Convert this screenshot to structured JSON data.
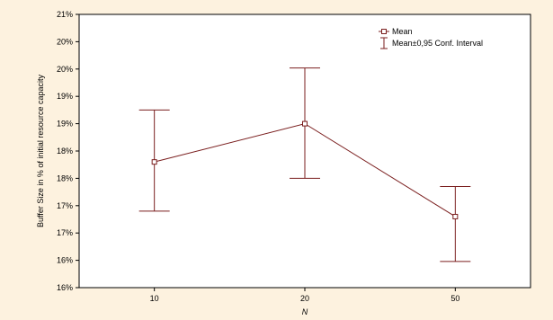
{
  "chart_data": {
    "type": "line",
    "xlabel": "N",
    "ylabel": "Buffer Size in % of initial resource capacity",
    "categories": [
      "10",
      "20",
      "50"
    ],
    "y_tick_labels": [
      "16%",
      "16%",
      "17%",
      "17%",
      "18%",
      "18%",
      "19%",
      "19%",
      "20%",
      "20%",
      "21%"
    ],
    "ylim": [
      15.5,
      20.5
    ],
    "grid": false,
    "legend_position": "top-right",
    "series": [
      {
        "name": "Mean",
        "values": [
          17.8,
          18.5,
          16.8
        ],
        "ci_low": [
          16.9,
          17.5,
          15.98
        ],
        "ci_high": [
          18.75,
          19.52,
          17.35
        ]
      }
    ],
    "legend": {
      "mean_label": "Mean",
      "ci_label": "Mean±0,95 Conf. Interval"
    },
    "colors": {
      "series": "#7a1e1e",
      "axis": "#000000",
      "margin": "#fdf2df"
    }
  }
}
